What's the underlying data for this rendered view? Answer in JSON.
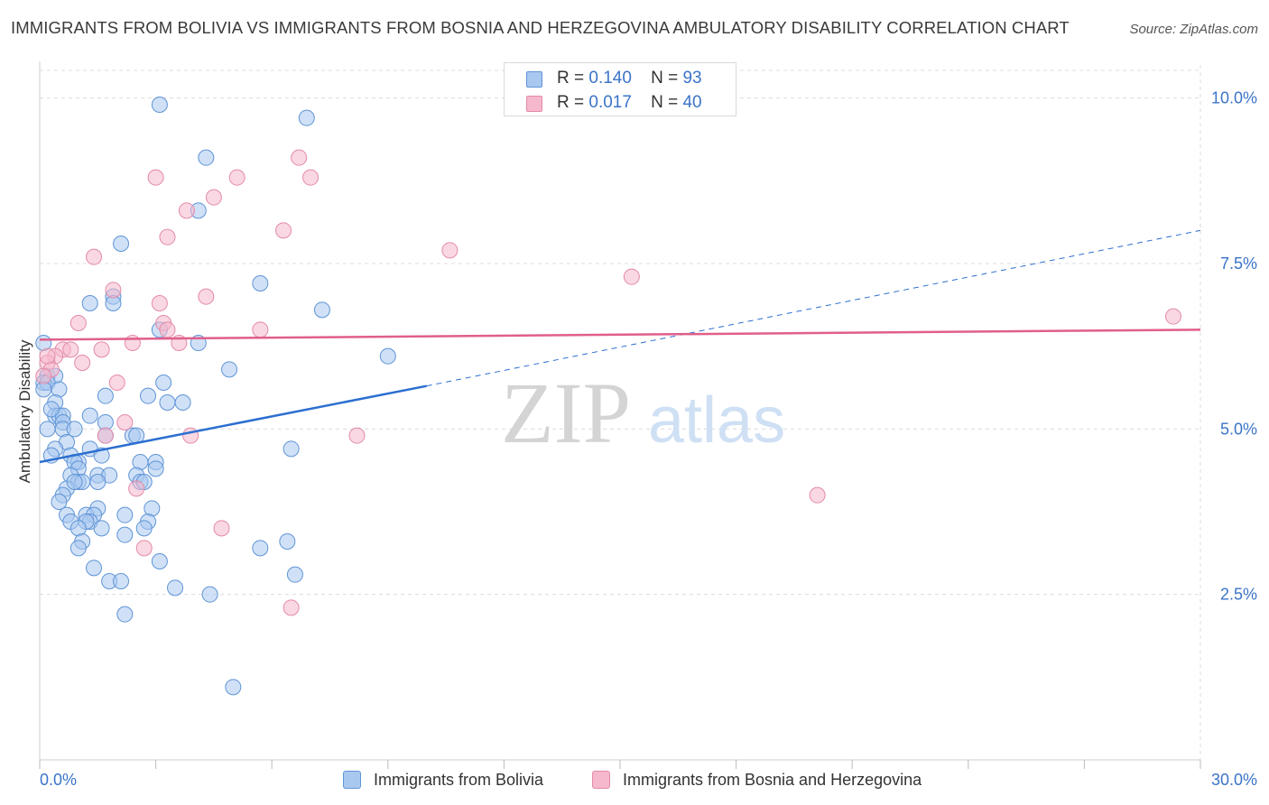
{
  "header": {
    "title": "IMMIGRANTS FROM BOLIVIA VS IMMIGRANTS FROM BOSNIA AND HERZEGOVINA AMBULATORY DISABILITY CORRELATION CHART",
    "source": "Source: ZipAtlas.com"
  },
  "legend_top": {
    "rows": [
      {
        "r_label": "R =",
        "r_value": "0.140",
        "n_label": "N =",
        "n_value": "93"
      },
      {
        "r_label": "R =",
        "r_value": "0.017",
        "n_label": "N =",
        "n_value": "40"
      }
    ]
  },
  "legend_bottom": {
    "series1": "Immigrants from Bolivia",
    "series2": "Immigrants from Bosnia and Herzegovina"
  },
  "watermark": {
    "zip": "ZIP",
    "atlas": "atlas"
  },
  "colors": {
    "blue_fill": "#a9c8f0",
    "blue_stroke": "#5f94d6",
    "blue_line": "#2c6fd0",
    "pink_fill": "#f6b8cc",
    "pink_stroke": "#e38aa9",
    "pink_line": "#e05f8a",
    "tick_label": "#3b74c8",
    "grid": "#dcdcdc"
  },
  "chart_data": {
    "type": "scatter",
    "title": "IMMIGRANTS FROM BOLIVIA VS IMMIGRANTS FROM BOSNIA AND HERZEGOVINA AMBULATORY DISABILITY CORRELATION CHART",
    "xlabel": "",
    "ylabel": "Ambulatory Disability",
    "xlim": [
      0,
      30
    ],
    "ylim": [
      0,
      10.5
    ],
    "x_tick_labels": [
      "0.0%",
      "30.0%"
    ],
    "y_ticks": [
      2.5,
      5.0,
      7.5,
      10.0
    ],
    "y_tick_labels": [
      "2.5%",
      "5.0%",
      "7.5%",
      "10.0%"
    ],
    "grid": true,
    "legend_position": "top-center",
    "series": [
      {
        "name": "Immigrants from Bolivia",
        "R": 0.14,
        "N": 93,
        "trend": {
          "x0": 0,
          "y0": 4.5,
          "x1": 10,
          "y1": 5.65,
          "dashed_to_x": 30,
          "dashed_to_y": 8.0
        },
        "points": [
          [
            3.1,
            9.9
          ],
          [
            6.9,
            9.7
          ],
          [
            4.3,
            9.1
          ],
          [
            4.1,
            8.3
          ],
          [
            2.1,
            7.8
          ],
          [
            5.7,
            7.2
          ],
          [
            1.9,
            7.0
          ],
          [
            1.3,
            6.9
          ],
          [
            1.9,
            6.9
          ],
          [
            7.3,
            6.8
          ],
          [
            3.1,
            6.5
          ],
          [
            4.1,
            6.3
          ],
          [
            9.0,
            6.1
          ],
          [
            0.1,
            6.3
          ],
          [
            4.9,
            5.9
          ],
          [
            0.2,
            5.8
          ],
          [
            0.4,
            5.8
          ],
          [
            0.1,
            5.7
          ],
          [
            0.2,
            5.7
          ],
          [
            3.2,
            5.7
          ],
          [
            0.1,
            5.6
          ],
          [
            0.5,
            5.6
          ],
          [
            2.8,
            5.5
          ],
          [
            1.7,
            5.5
          ],
          [
            3.3,
            5.4
          ],
          [
            3.7,
            5.4
          ],
          [
            0.4,
            5.4
          ],
          [
            0.4,
            5.2
          ],
          [
            1.3,
            5.2
          ],
          [
            0.5,
            5.2
          ],
          [
            0.6,
            5.2
          ],
          [
            0.6,
            5.1
          ],
          [
            1.7,
            5.1
          ],
          [
            0.2,
            5.0
          ],
          [
            0.6,
            5.0
          ],
          [
            2.4,
            4.9
          ],
          [
            2.5,
            4.9
          ],
          [
            1.7,
            4.9
          ],
          [
            0.7,
            4.8
          ],
          [
            1.3,
            4.7
          ],
          [
            0.4,
            4.7
          ],
          [
            6.5,
            4.7
          ],
          [
            1.6,
            4.6
          ],
          [
            0.8,
            4.6
          ],
          [
            1.0,
            4.5
          ],
          [
            0.9,
            4.5
          ],
          [
            2.6,
            4.5
          ],
          [
            3.0,
            4.5
          ],
          [
            3.0,
            4.4
          ],
          [
            1.0,
            4.4
          ],
          [
            0.8,
            4.3
          ],
          [
            1.5,
            4.3
          ],
          [
            1.8,
            4.3
          ],
          [
            2.5,
            4.3
          ],
          [
            1.0,
            4.2
          ],
          [
            1.1,
            4.2
          ],
          [
            1.5,
            4.2
          ],
          [
            2.6,
            4.2
          ],
          [
            2.7,
            4.2
          ],
          [
            0.7,
            4.1
          ],
          [
            0.6,
            4.0
          ],
          [
            0.5,
            3.9
          ],
          [
            1.5,
            3.8
          ],
          [
            2.9,
            3.8
          ],
          [
            0.7,
            3.7
          ],
          [
            1.2,
            3.7
          ],
          [
            1.4,
            3.7
          ],
          [
            2.2,
            3.7
          ],
          [
            0.8,
            3.6
          ],
          [
            1.3,
            3.6
          ],
          [
            1.2,
            3.6
          ],
          [
            2.8,
            3.6
          ],
          [
            1.0,
            3.5
          ],
          [
            1.6,
            3.5
          ],
          [
            2.7,
            3.5
          ],
          [
            2.2,
            3.4
          ],
          [
            1.1,
            3.3
          ],
          [
            1.0,
            3.2
          ],
          [
            5.7,
            3.2
          ],
          [
            6.4,
            3.3
          ],
          [
            3.1,
            3.0
          ],
          [
            1.4,
            2.9
          ],
          [
            6.6,
            2.8
          ],
          [
            1.8,
            2.7
          ],
          [
            2.1,
            2.7
          ],
          [
            3.5,
            2.6
          ],
          [
            4.4,
            2.5
          ],
          [
            2.2,
            2.2
          ],
          [
            5.0,
            1.1
          ],
          [
            0.3,
            5.3
          ],
          [
            0.9,
            5.0
          ],
          [
            0.3,
            4.6
          ],
          [
            0.9,
            4.2
          ]
        ]
      },
      {
        "name": "Immigrants from Bosnia and Herzegovina",
        "R": 0.017,
        "N": 40,
        "trend": {
          "x0": 0,
          "y0": 6.35,
          "x1": 30,
          "y1": 6.5
        },
        "points": [
          [
            6.7,
            9.1
          ],
          [
            5.1,
            8.8
          ],
          [
            7.0,
            8.8
          ],
          [
            3.0,
            8.8
          ],
          [
            4.5,
            8.5
          ],
          [
            3.8,
            8.3
          ],
          [
            6.3,
            8.0
          ],
          [
            3.3,
            7.9
          ],
          [
            10.6,
            7.7
          ],
          [
            1.4,
            7.6
          ],
          [
            15.3,
            7.3
          ],
          [
            1.9,
            7.1
          ],
          [
            29.3,
            6.7
          ],
          [
            4.3,
            7.0
          ],
          [
            3.1,
            6.9
          ],
          [
            1.0,
            6.6
          ],
          [
            3.2,
            6.6
          ],
          [
            5.7,
            6.5
          ],
          [
            3.3,
            6.5
          ],
          [
            2.4,
            6.3
          ],
          [
            3.6,
            6.3
          ],
          [
            0.6,
            6.2
          ],
          [
            0.8,
            6.2
          ],
          [
            1.6,
            6.2
          ],
          [
            0.4,
            6.1
          ],
          [
            0.2,
            6.0
          ],
          [
            1.1,
            6.0
          ],
          [
            0.3,
            5.9
          ],
          [
            0.1,
            5.8
          ],
          [
            2.0,
            5.7
          ],
          [
            2.2,
            5.1
          ],
          [
            1.7,
            4.9
          ],
          [
            3.9,
            4.9
          ],
          [
            8.2,
            4.9
          ],
          [
            2.5,
            4.1
          ],
          [
            20.1,
            4.0
          ],
          [
            4.7,
            3.5
          ],
          [
            2.7,
            3.2
          ],
          [
            6.5,
            2.3
          ],
          [
            0.2,
            6.1
          ]
        ]
      }
    ]
  }
}
